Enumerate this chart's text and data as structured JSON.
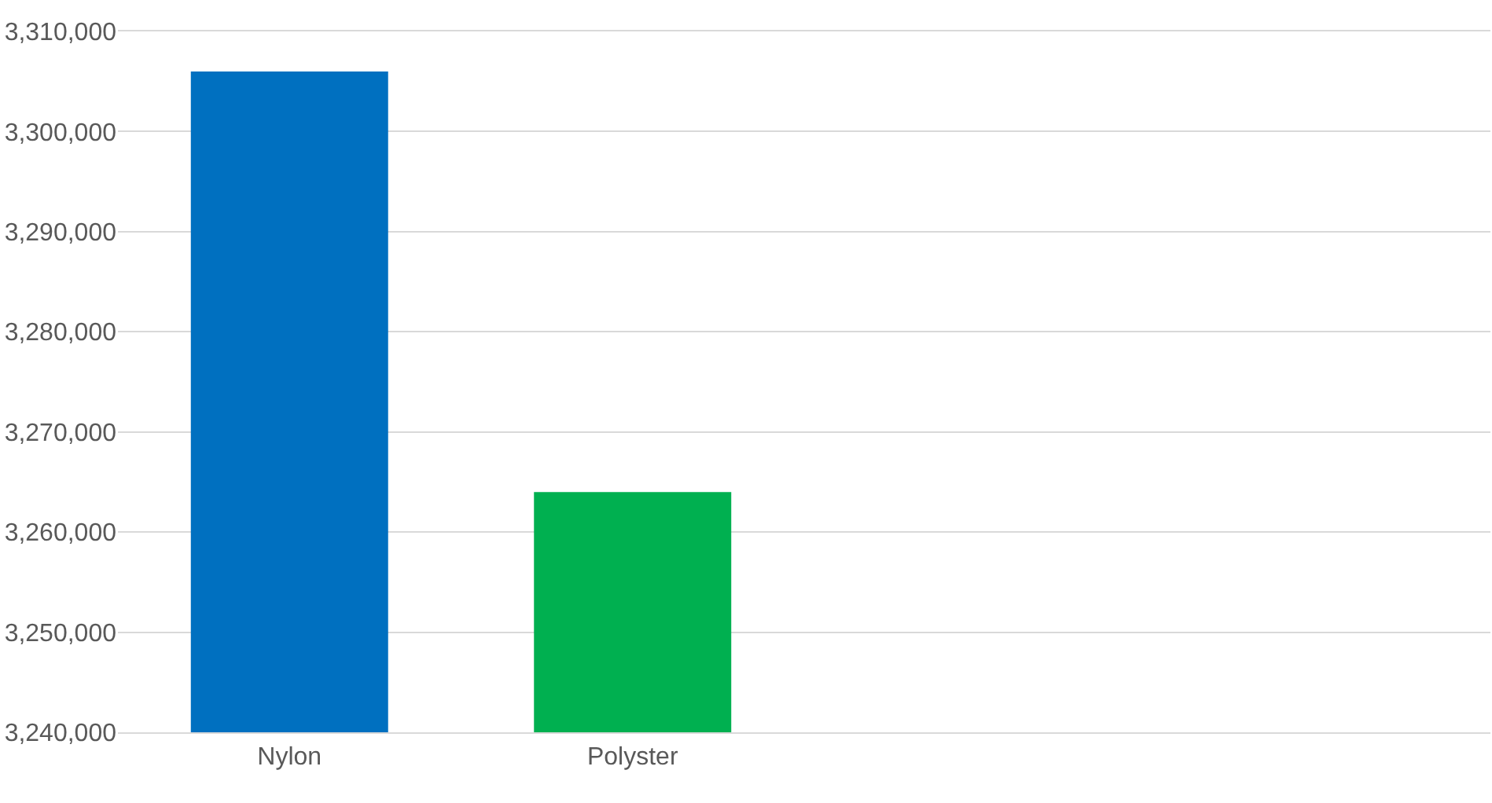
{
  "chart_data": {
    "type": "bar",
    "categories": [
      "Nylon",
      "Polyster",
      null,
      null
    ],
    "values": [
      3306000,
      3264000,
      null,
      null
    ],
    "colors": [
      "#0070c0",
      "#00b050",
      "#0070c0",
      "#0070c0"
    ],
    "ylim": [
      3240000,
      3310000
    ],
    "yticks": [
      {
        "value": 3240000,
        "label": "3,240,000"
      },
      {
        "value": 3250000,
        "label": "3,250,000"
      },
      {
        "value": 3260000,
        "label": "3,260,000"
      },
      {
        "value": 3270000,
        "label": "3,270,000"
      },
      {
        "value": 3280000,
        "label": "3,280,000"
      },
      {
        "value": 3290000,
        "label": "3,290,000"
      },
      {
        "value": 3300000,
        "label": "3,300,000"
      },
      {
        "value": 3310000,
        "label": "3,310,000"
      }
    ],
    "grid": "y"
  }
}
